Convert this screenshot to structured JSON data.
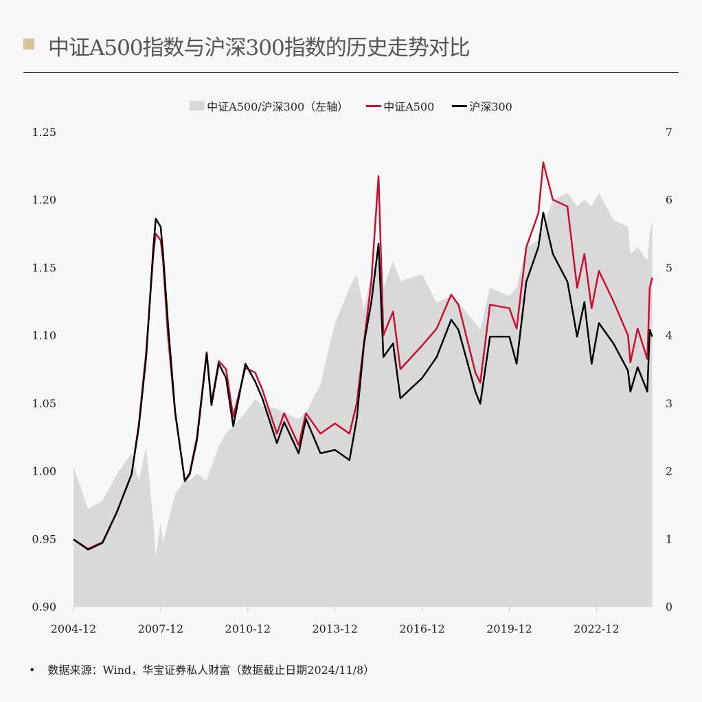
{
  "title": "中证A500指数与沪深300指数的历史走势对比",
  "colors": {
    "area": "#d9d9d9",
    "a500": "#c8102e",
    "hs300": "#000000",
    "accent": "#d9c39e"
  },
  "footer": {
    "bullet": "•",
    "text": "数据来源：Wind，华宝证券私人财富（数据截止日期2024/11/8）"
  },
  "chart_data": {
    "type": "line",
    "title": "中证A500指数与沪深300指数的历史走势对比",
    "legend_position": "top-center",
    "legend": [
      "中证A500/沪深300（左轴）",
      "中证A500",
      "沪深300"
    ],
    "x_ticks": [
      "2004-12",
      "2007-12",
      "2010-12",
      "2013-12",
      "2016-12",
      "2019-12",
      "2022-12"
    ],
    "x_range": [
      "2004-12",
      "2024-11"
    ],
    "y_left": {
      "range": [
        0.9,
        1.25
      ],
      "ticks": [
        "0.90",
        "0.95",
        "1.00",
        "1.05",
        "1.10",
        "1.15",
        "1.20",
        "1.25"
      ]
    },
    "y_right": {
      "range": [
        0,
        7
      ],
      "ticks": [
        "0",
        "1",
        "2",
        "3",
        "4",
        "5",
        "6",
        "7"
      ]
    },
    "x": [
      "2004-12",
      "2005-06",
      "2005-12",
      "2006-06",
      "2006-12",
      "2007-03",
      "2007-06",
      "2007-09",
      "2007-10",
      "2007-12",
      "2008-01",
      "2008-03",
      "2008-06",
      "2008-10",
      "2008-12",
      "2009-03",
      "2009-07",
      "2009-09",
      "2009-12",
      "2010-03",
      "2010-06",
      "2010-11",
      "2011-03",
      "2011-06",
      "2011-12",
      "2012-03",
      "2012-09",
      "2012-12",
      "2013-06",
      "2013-12",
      "2014-06",
      "2014-09",
      "2014-12",
      "2015-03",
      "2015-06",
      "2015-08",
      "2015-12",
      "2016-03",
      "2016-12",
      "2017-06",
      "2017-12",
      "2018-03",
      "2018-10",
      "2018-12",
      "2019-04",
      "2019-12",
      "2020-03",
      "2020-07",
      "2020-12",
      "2021-02",
      "2021-06",
      "2021-12",
      "2022-04",
      "2022-07",
      "2022-10",
      "2023-01",
      "2023-07",
      "2024-01",
      "2024-02",
      "2024-05",
      "2024-09",
      "2024-10",
      "2024-11"
    ],
    "series": [
      {
        "name": "中证A500/沪深300（左轴）",
        "type": "area",
        "axis": "left",
        "values": [
          1.003,
          0.972,
          0.978,
          0.998,
          1.013,
          0.993,
          1.018,
          0.962,
          0.937,
          0.962,
          0.947,
          0.962,
          0.983,
          0.993,
          0.993,
          0.998,
          0.993,
          1.003,
          1.018,
          1.028,
          1.033,
          1.043,
          1.053,
          1.048,
          1.046,
          1.043,
          1.038,
          1.043,
          1.064,
          1.109,
          1.135,
          1.145,
          1.119,
          1.145,
          1.155,
          1.135,
          1.155,
          1.14,
          1.145,
          1.124,
          1.129,
          1.124,
          1.109,
          1.104,
          1.135,
          1.129,
          1.135,
          1.165,
          1.17,
          1.18,
          1.2,
          1.205,
          1.195,
          1.2,
          1.195,
          1.205,
          1.185,
          1.18,
          1.16,
          1.165,
          1.155,
          1.175,
          1.185
        ]
      },
      {
        "name": "中证A500",
        "type": "line",
        "axis": "right",
        "values": [
          0.99,
          0.85,
          0.95,
          1.4,
          1.95,
          2.7,
          3.75,
          5.2,
          5.5,
          5.4,
          5.1,
          4.0,
          2.85,
          1.85,
          1.97,
          2.5,
          3.75,
          3.0,
          3.62,
          3.5,
          2.8,
          3.52,
          3.45,
          3.2,
          2.55,
          2.85,
          2.38,
          2.85,
          2.55,
          2.7,
          2.55,
          3.0,
          3.9,
          4.8,
          6.35,
          4.0,
          4.35,
          3.5,
          3.85,
          4.1,
          4.6,
          4.45,
          3.45,
          3.3,
          4.45,
          4.4,
          4.1,
          5.3,
          5.8,
          6.55,
          6.0,
          5.9,
          4.7,
          5.2,
          4.4,
          4.95,
          4.5,
          4.0,
          3.6,
          4.1,
          3.65,
          4.7,
          4.85
        ]
      },
      {
        "name": "沪深300",
        "type": "line",
        "axis": "right",
        "values": [
          0.99,
          0.84,
          0.94,
          1.4,
          1.95,
          2.66,
          3.68,
          5.3,
          5.72,
          5.6,
          5.2,
          4.18,
          2.87,
          1.85,
          1.95,
          2.46,
          3.73,
          2.97,
          3.58,
          3.37,
          2.66,
          3.58,
          3.32,
          3.07,
          2.41,
          2.72,
          2.26,
          2.77,
          2.26,
          2.31,
          2.16,
          2.77,
          3.88,
          4.49,
          5.35,
          3.68,
          3.88,
          3.07,
          3.37,
          3.68,
          4.23,
          4.08,
          3.17,
          2.99,
          3.98,
          3.98,
          3.58,
          4.79,
          5.3,
          5.81,
          5.2,
          4.79,
          3.98,
          4.49,
          3.58,
          4.18,
          3.88,
          3.48,
          3.17,
          3.53,
          3.17,
          4.08,
          3.98
        ]
      }
    ]
  }
}
